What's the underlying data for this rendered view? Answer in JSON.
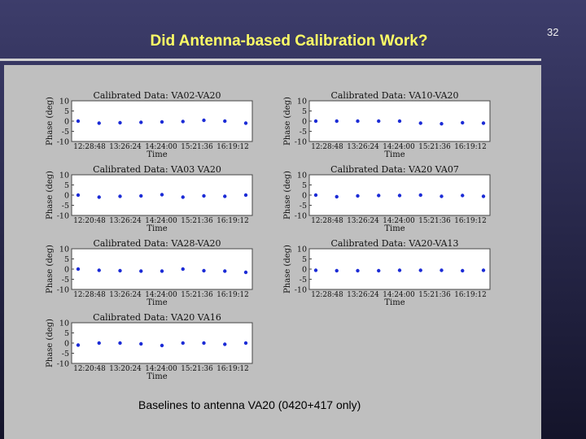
{
  "page_number": "32",
  "slide_title": "Did Antenna-based Calibration Work?",
  "caption": "Baselines to antenna VA20 (0420+417 only)",
  "colors": {
    "marker": "#1b2bd6",
    "title": "#ffff66"
  },
  "chart_data": [
    {
      "type": "scatter",
      "title": "Calibrated Data: VA02-VA20",
      "xlabel": "Time",
      "ylabel": "Phase (deg)",
      "ylim": [
        -10,
        10
      ],
      "yticks": [
        "10",
        "5",
        "0",
        "-5",
        "-10"
      ],
      "xticks": [
        "12:28:48",
        "13:26:24",
        "14:24:00",
        "15:21:36",
        "16:19:12"
      ],
      "x": [
        1,
        2,
        3,
        4,
        5,
        6,
        7,
        8,
        9
      ],
      "y": [
        0,
        -1,
        -0.8,
        -0.6,
        -0.4,
        -0.2,
        0.4,
        0,
        -1
      ]
    },
    {
      "type": "scatter",
      "title": "Calibrated Data: VA10-VA20",
      "xlabel": "Time",
      "ylabel": "Phase (deg)",
      "ylim": [
        -10,
        10
      ],
      "yticks": [
        "10",
        "5",
        "0",
        "-5",
        "-10"
      ],
      "xticks": [
        "12:28:48",
        "13:26:24",
        "14:24:00",
        "15:21:36",
        "16:19:12"
      ],
      "x": [
        1,
        2,
        3,
        4,
        5,
        6,
        7,
        8,
        9
      ],
      "y": [
        0,
        0,
        0,
        0,
        0,
        -1,
        -1.3,
        -0.8,
        -1
      ]
    },
    {
      "type": "scatter",
      "title": "Calibrated Data: VA03 VA20",
      "xlabel": "Time",
      "ylabel": "Phase (deg)",
      "ylim": [
        -10,
        10
      ],
      "yticks": [
        "10",
        "5",
        "0",
        "-5",
        "-10"
      ],
      "xticks": [
        "12:20:48",
        "13:26:24",
        "14:24:00",
        "15:21:36",
        "16:19:12"
      ],
      "x": [
        1,
        2,
        3,
        4,
        5,
        6,
        7,
        8,
        9
      ],
      "y": [
        0,
        -1,
        -0.6,
        -0.4,
        0.2,
        -1,
        -0.4,
        -0.6,
        0
      ]
    },
    {
      "type": "scatter",
      "title": "Calibrated Data: VA20 VA07",
      "xlabel": "Time",
      "ylabel": "Phase (deg)",
      "ylim": [
        -10,
        10
      ],
      "yticks": [
        "10",
        "5",
        "0",
        "-5",
        "-10"
      ],
      "xticks": [
        "12:28:48",
        "13:26:24",
        "14:24:00",
        "15:21:36",
        "16:19:12"
      ],
      "x": [
        1,
        2,
        3,
        4,
        5,
        6,
        7,
        8,
        9
      ],
      "y": [
        0,
        -0.8,
        -0.4,
        -0.2,
        -0.2,
        0,
        -0.6,
        -0.2,
        -0.6
      ]
    },
    {
      "type": "scatter",
      "title": "Calibrated Data: VA28-VA20",
      "xlabel": "Time",
      "ylabel": "Phase (deg)",
      "ylim": [
        -10,
        10
      ],
      "yticks": [
        "10",
        "5",
        "0",
        "-5",
        "-10"
      ],
      "xticks": [
        "12:28:48",
        "13:26:24",
        "14:24:00",
        "15:21:36",
        "16:19:12"
      ],
      "x": [
        1,
        2,
        3,
        4,
        5,
        6,
        7,
        8,
        9
      ],
      "y": [
        0,
        -0.6,
        -0.8,
        -1,
        -1,
        0,
        -0.8,
        -1,
        -1.6
      ]
    },
    {
      "type": "scatter",
      "title": "Calibrated Data: VA20-VA13",
      "xlabel": "Time",
      "ylabel": "Phase (deg)",
      "ylim": [
        -10,
        10
      ],
      "yticks": [
        "10",
        "5",
        "0",
        "-5",
        "-10"
      ],
      "xticks": [
        "12:28:48",
        "13:26:24",
        "14:24:00",
        "15:21:36",
        "16:19:12"
      ],
      "x": [
        1,
        2,
        3,
        4,
        5,
        6,
        7,
        8,
        9
      ],
      "y": [
        -0.6,
        -0.8,
        -0.8,
        -0.8,
        -0.6,
        -0.6,
        -0.6,
        -0.8,
        -0.6
      ]
    },
    {
      "type": "scatter",
      "title": "Calibrated Data: VA20 VA16",
      "xlabel": "Time",
      "ylabel": "Phase (deg)",
      "ylim": [
        -10,
        10
      ],
      "yticks": [
        "10",
        "5",
        "0",
        "-5",
        "-10"
      ],
      "xticks": [
        "12:20:48",
        "13:20:24",
        "14:24:00",
        "15:21:36",
        "16:19:12"
      ],
      "x": [
        1,
        2,
        3,
        4,
        5,
        6,
        7,
        8,
        9
      ],
      "y": [
        -1,
        0,
        0,
        -0.4,
        -1.2,
        0,
        0,
        -0.6,
        0
      ]
    }
  ]
}
